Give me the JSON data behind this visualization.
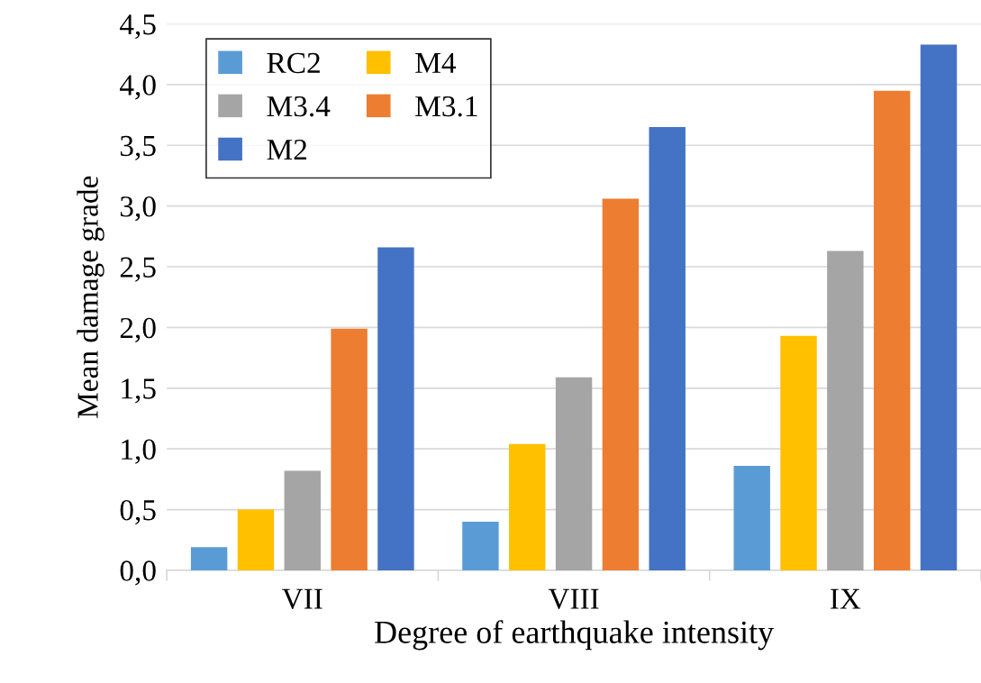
{
  "chart_data": {
    "type": "bar",
    "xlabel": "Degree of earthquake intensity",
    "ylabel": "Mean damage grade",
    "categories": [
      "VII",
      "VIII",
      "IX"
    ],
    "series": [
      {
        "name": "RC2",
        "color": "#5b9bd5",
        "values": [
          0.19,
          0.4,
          0.86
        ]
      },
      {
        "name": "M4",
        "color": "#ffc000",
        "values": [
          0.5,
          1.04,
          1.93
        ]
      },
      {
        "name": "M3.4",
        "color": "#a5a5a5",
        "values": [
          0.82,
          1.59,
          2.63
        ]
      },
      {
        "name": "M3.1",
        "color": "#ed7d31",
        "values": [
          1.99,
          3.06,
          3.95
        ]
      },
      {
        "name": "M2",
        "color": "#4472c4",
        "values": [
          2.66,
          3.65,
          4.33
        ]
      }
    ],
    "ylim": [
      0,
      4.5
    ],
    "yticks": [
      {
        "value": 0,
        "label": "0,0"
      },
      {
        "value": 0.5,
        "label": "0,5"
      },
      {
        "value": 1,
        "label": "1,0"
      },
      {
        "value": 1.5,
        "label": "1,5"
      },
      {
        "value": 2,
        "label": "2,0"
      },
      {
        "value": 2.5,
        "label": "2,5"
      },
      {
        "value": 3,
        "label": "3,0"
      },
      {
        "value": 3.5,
        "label": "3,5"
      },
      {
        "value": 4,
        "label": "4,0"
      },
      {
        "value": 4.5,
        "label": "4,5"
      }
    ],
    "grid": "y",
    "legend": "top left"
  }
}
